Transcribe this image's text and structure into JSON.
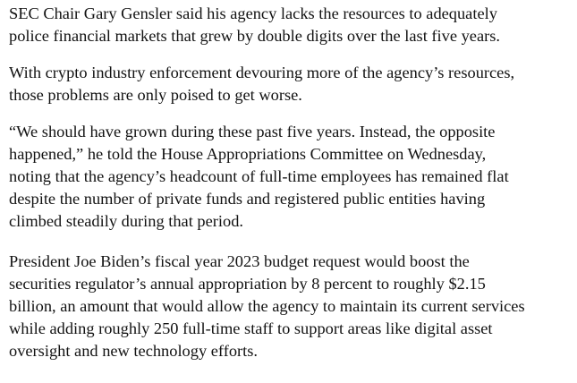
{
  "article": {
    "paragraphs": [
      {
        "lines": [
          "SEC Chair Gary Gensler said his agency lacks the resources to adequately",
          "police financial markets that grew by double digits over the last five years."
        ]
      },
      {
        "lines": [
          "With crypto industry enforcement devouring more of the agency’s resources,",
          "those problems are only poised to get worse."
        ]
      },
      {
        "lines": [
          "“We should have grown during these past five years. Instead, the opposite",
          "happened,” he told the House Appropriations Committee on Wednesday,",
          "noting that the agency’s headcount of full-time employees has remained flat",
          "despite the number of private funds and registered public entities having",
          "climbed steadily during that period."
        ]
      },
      {
        "lines": [
          "President Joe Biden’s fiscal year 2023 budget request would boost the",
          "securities regulator’s annual appropriation by 8 percent to roughly $2.15",
          "billion, an amount that would allow the agency to maintain its current services",
          "while adding roughly 250 full-time staff to support areas like digital asset",
          "oversight and new technology efforts."
        ]
      }
    ]
  }
}
